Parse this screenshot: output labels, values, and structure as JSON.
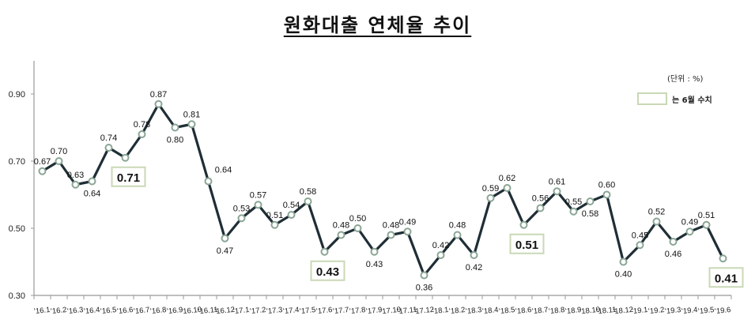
{
  "title": "원화대출 연체율 추이",
  "unit_label": "(단위 : %)",
  "legend": {
    "label": "는 6월 수치",
    "box_color": "#c9d8b6"
  },
  "colors": {
    "line": "#1f2e36",
    "marker_edge": "#8aa595",
    "marker_fill": "#ffffff",
    "highlight_border": "#c9d8b6",
    "axis": "#999999"
  },
  "chart_data": {
    "type": "line",
    "title": "원화대출 연체율 추이",
    "xlabel": "",
    "ylabel": "(단위 : %)",
    "ylim": [
      0.3,
      0.9
    ],
    "yticks": [
      "0.30",
      "0.50",
      "0.70",
      "0.90"
    ],
    "grid": false,
    "legend_position": "top-right",
    "categories": [
      "'16.1",
      "'16.2",
      "'16.3",
      "'16.4",
      "'16.5",
      "'16.6",
      "'16.7",
      "'16.8",
      "'16.9",
      "'16.10",
      "'16.11",
      "'16.12",
      "'17.1",
      "'17.2",
      "'17.3",
      "'17.4",
      "'17.5",
      "'17.6",
      "'17.7",
      "'17.8",
      "'17.9",
      "'17.10",
      "'17.11",
      "'17.12",
      "'18.1",
      "'18.2",
      "'18.3",
      "'18.4",
      "'18.5",
      "'18.6",
      "'18.7",
      "'18.8",
      "'18.9",
      "'18.10",
      "'18.11",
      "'18.12",
      "'19.1",
      "'19.2",
      "'19.3",
      "'19.4",
      "'19.5",
      "'19.6"
    ],
    "series": [
      {
        "name": "원화대출 연체율",
        "values": [
          0.67,
          0.7,
          0.63,
          0.64,
          0.74,
          0.71,
          0.78,
          0.87,
          0.8,
          0.81,
          0.64,
          0.47,
          0.53,
          0.57,
          0.51,
          0.54,
          0.58,
          0.43,
          0.48,
          0.5,
          0.43,
          0.48,
          0.49,
          0.36,
          0.42,
          0.48,
          0.42,
          0.59,
          0.62,
          0.51,
          0.56,
          0.61,
          0.55,
          0.58,
          0.6,
          0.4,
          0.45,
          0.52,
          0.46,
          0.49,
          0.51,
          0.41
        ]
      }
    ],
    "highlighted": [
      5,
      17,
      29,
      41
    ],
    "label_positions": [
      "a",
      "a",
      "a",
      "b",
      "a",
      "h",
      "a",
      "a",
      "b",
      "a",
      "r",
      "b",
      "a",
      "a",
      "a",
      "a",
      "a",
      "h",
      "a",
      "a",
      "b",
      "a",
      "a",
      "b",
      "a",
      "a",
      "b",
      "a",
      "a",
      "h",
      "a",
      "a",
      "a",
      "b",
      "a",
      "b",
      "a",
      "a",
      "b",
      "a",
      "a",
      "h"
    ],
    "annotations": [
      "June values highlighted in boxes: 0.71, 0.43, 0.51, 0.41"
    ]
  }
}
